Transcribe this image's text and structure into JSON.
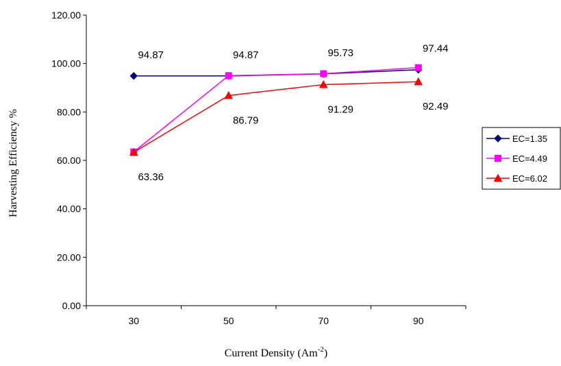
{
  "chart_data": {
    "type": "line",
    "categories": [
      "30",
      "50",
      "70",
      "90"
    ],
    "ylabel": "Harvesting Efficiency %",
    "xlabel_main": "Current Density (Am",
    "xlabel_sup": "-2",
    "xlabel_close": ")",
    "ylim": [
      0,
      120
    ],
    "y_ticks": [
      "0.00",
      "20.00",
      "40.00",
      "60.00",
      "80.00",
      "100.00",
      "120.00"
    ],
    "grid": false,
    "legend_position": "right",
    "series": [
      {
        "name": "EC=1.35",
        "values": [
          94.87,
          94.87,
          95.73,
          97.44
        ],
        "color": "#000080",
        "marker": "diamond"
      },
      {
        "name": "EC=4.49",
        "values": [
          63.5,
          95.0,
          95.8,
          98.3
        ],
        "color": "#ff00ff",
        "marker": "square"
      },
      {
        "name": "EC=6.02",
        "values": [
          63.36,
          86.79,
          91.29,
          92.49
        ],
        "color": "#ff0000",
        "marker": "triangle"
      }
    ],
    "data_labels": [
      {
        "text": "94.87",
        "category": "30",
        "value": 94.87,
        "placement": "above"
      },
      {
        "text": "94.87",
        "category": "50",
        "value": 94.87,
        "placement": "above"
      },
      {
        "text": "95.73",
        "category": "70",
        "value": 95.73,
        "placement": "above"
      },
      {
        "text": "97.44",
        "category": "90",
        "value": 97.44,
        "placement": "above"
      },
      {
        "text": "63.36",
        "category": "30",
        "value": 63.36,
        "placement": "below"
      },
      {
        "text": "86.79",
        "category": "50",
        "value": 86.79,
        "placement": "below"
      },
      {
        "text": "91.29",
        "category": "70",
        "value": 91.29,
        "placement": "below"
      },
      {
        "text": "92.49",
        "category": "90",
        "value": 92.49,
        "placement": "below"
      }
    ]
  }
}
